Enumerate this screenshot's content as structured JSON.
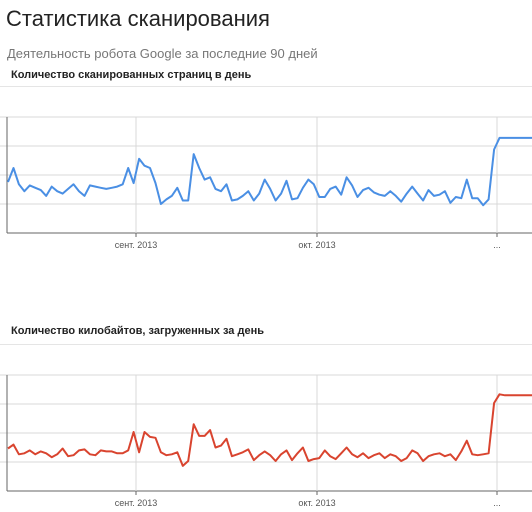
{
  "header": {
    "title": "Статистика сканирования",
    "subtitle": "Деятельность робота Google за последние 90 дней"
  },
  "colors": {
    "pages_line": "#4a8fe4",
    "kilobytes_line": "#d9442f",
    "grid": "#d8d8d8",
    "axis": "#666666"
  },
  "chart_data": [
    {
      "type": "line",
      "title": "Количество сканированных страниц в день",
      "x_tick_labels": [
        "сент. 2013",
        "окт. 2013",
        "..."
      ],
      "grid": true,
      "series": [
        {
          "values": [
            4.4,
            5.6,
            4.2,
            3.6,
            4.1,
            3.9,
            3.7,
            3.2,
            4.0,
            3.6,
            3.4,
            3.8,
            4.2,
            3.6,
            3.2,
            4.1,
            4.0,
            3.9,
            3.8,
            3.9,
            4.0,
            4.2,
            5.6,
            4.3,
            6.4,
            5.8,
            5.6,
            4.3,
            2.5,
            2.9,
            3.2,
            3.9,
            2.8,
            2.8,
            6.8,
            5.6,
            4.6,
            4.8,
            3.8,
            3.6,
            4.2,
            2.8,
            2.9,
            3.2,
            3.6,
            2.8,
            3.4,
            4.6,
            3.8,
            2.8,
            3.4,
            4.5,
            2.9,
            3.0,
            3.9,
            4.6,
            4.2,
            3.1,
            3.1,
            3.8,
            4.0,
            3.3,
            4.8,
            4.1,
            3.1,
            3.7,
            3.9,
            3.5,
            3.3,
            3.2,
            3.6,
            3.2,
            2.7,
            3.4,
            4.0,
            3.4,
            2.8,
            3.7,
            3.2,
            3.3,
            3.6,
            2.6,
            3.1,
            3.0,
            4.6,
            3.0,
            3.0,
            2.4,
            2.9,
            7.2,
            8.2,
            8.2
          ]
        }
      ]
    },
    {
      "type": "line",
      "title": "Количество килобайтов, загруженных за день",
      "x_tick_labels": [
        "сент. 2013",
        "окт. 2013",
        "..."
      ],
      "grid": true,
      "series": [
        {
          "values": [
            4.4,
            4.8,
            3.8,
            3.9,
            4.2,
            3.8,
            4.1,
            3.9,
            3.5,
            3.8,
            4.4,
            3.6,
            3.7,
            4.2,
            4.3,
            3.8,
            3.7,
            4.2,
            4.1,
            4.1,
            3.9,
            3.9,
            4.2,
            6.1,
            4.0,
            6.1,
            5.6,
            5.5,
            4.0,
            3.7,
            3.8,
            4.0,
            2.6,
            3.1,
            6.9,
            5.7,
            5.7,
            6.3,
            4.5,
            4.7,
            5.4,
            3.6,
            3.8,
            4.0,
            4.3,
            3.2,
            3.7,
            4.1,
            3.7,
            3.1,
            3.8,
            4.2,
            3.2,
            3.9,
            4.5,
            3.1,
            3.3,
            3.4,
            4.2,
            3.6,
            3.3,
            3.9,
            4.5,
            3.8,
            3.5,
            3.9,
            3.4,
            3.7,
            3.9,
            3.4,
            3.8,
            3.6,
            3.1,
            3.4,
            4.2,
            3.9,
            3.1,
            3.6,
            3.8,
            3.9,
            3.6,
            3.8,
            3.2,
            4.1,
            5.2,
            3.8,
            3.7,
            3.8,
            3.9,
            9.1,
            10.0,
            9.9
          ]
        }
      ]
    }
  ]
}
